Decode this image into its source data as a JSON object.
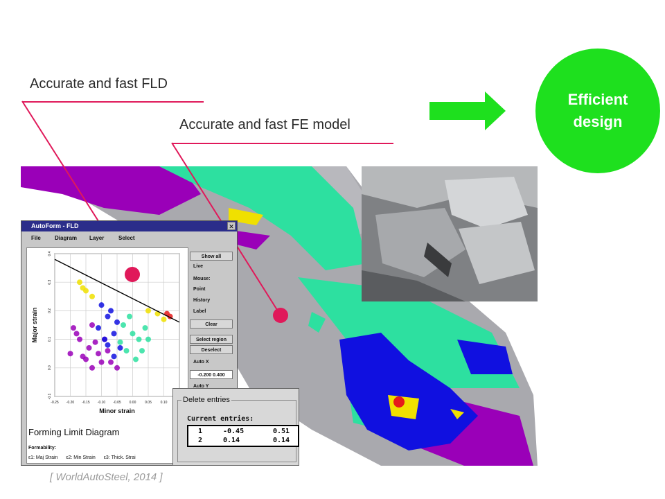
{
  "labels": {
    "fld": "Accurate and fast FLD",
    "fe_model": "Accurate and fast FE model"
  },
  "result": {
    "text_line1": "Efficient",
    "text_line2": "design",
    "circle_color": "#1ee01e",
    "arrow_color": "#1ee01e"
  },
  "citation": "[ WorldAutoSteel, 2014 ]",
  "accent_color": "#e0195a",
  "fld_window": {
    "title": "AutoForm - FLD",
    "menu": [
      "File",
      "Diagram",
      "Layer",
      "Select"
    ],
    "buttons": {
      "show_all": "Show all",
      "live": "Live",
      "mouse_label": "Mouse:",
      "point": "Point",
      "history": "History",
      "label": "Label",
      "clear": "Clear",
      "select_region": "Select region",
      "deselect": "Deselect",
      "auto_x": "Auto X",
      "range": "-0.200 0.400",
      "auto_y": "Auto Y"
    },
    "diagram_title": "Forming Limit Diagram",
    "formability_label": "Formability:",
    "formability_items": {
      "e1": "ε1: Maj Strain",
      "e2": "ε2: Min Strain",
      "e3": "ε3: Thick. Strai"
    }
  },
  "chart_data": {
    "type": "scatter",
    "xlabel": "Minor strain",
    "ylabel": "Major strain",
    "xlim": [
      -0.25,
      0.15
    ],
    "ylim": [
      -0.1,
      0.4
    ],
    "x_ticks": [
      "-0.25",
      "-0.20",
      "-0.15",
      "-0.10",
      "-0.05",
      "0.00",
      "0.05",
      "0.10",
      "0.15"
    ],
    "y_ticks": [
      "-0.1",
      "0.0",
      "0.1",
      "0.2",
      "0.3",
      "0.4"
    ],
    "grid": true,
    "limit_curve": {
      "x": [
        -0.25,
        0.15
      ],
      "y": [
        0.38,
        0.16
      ]
    },
    "series": [
      {
        "color": "#9a00b8",
        "x": [
          -0.2,
          -0.18,
          -0.15,
          -0.13,
          -0.1,
          -0.08,
          -0.12,
          -0.17,
          -0.05,
          -0.14,
          -0.19,
          -0.09,
          -0.16,
          -0.11,
          -0.07,
          -0.13
        ],
        "y": [
          0.05,
          0.12,
          0.03,
          0.15,
          0.02,
          0.06,
          0.09,
          0.1,
          0.0,
          0.07,
          0.14,
          0.1,
          0.04,
          0.05,
          0.02,
          0.0
        ]
      },
      {
        "color": "#1010e0",
        "x": [
          -0.1,
          -0.08,
          -0.06,
          -0.09,
          -0.05,
          -0.07,
          -0.11,
          -0.04,
          -0.06,
          -0.08
        ],
        "y": [
          0.22,
          0.18,
          0.12,
          0.1,
          0.16,
          0.2,
          0.14,
          0.07,
          0.04,
          0.08
        ]
      },
      {
        "color": "#2de0a0",
        "x": [
          -0.03,
          0.0,
          0.02,
          -0.02,
          0.04,
          0.01,
          -0.01,
          0.03,
          0.05,
          -0.04
        ],
        "y": [
          0.15,
          0.12,
          0.1,
          0.06,
          0.14,
          0.03,
          0.18,
          0.06,
          0.1,
          0.09
        ]
      },
      {
        "color": "#f0e000",
        "x": [
          -0.17,
          -0.15,
          -0.13,
          0.05,
          0.08,
          0.1,
          -0.16
        ],
        "y": [
          0.3,
          0.27,
          0.25,
          0.2,
          0.19,
          0.17,
          0.28
        ]
      },
      {
        "color": "#e61a1a",
        "x": [
          0.11,
          0.12
        ],
        "y": [
          0.19,
          0.18
        ]
      }
    ]
  },
  "delete_window": {
    "group_title": "Delete entries",
    "subtitle": "Current entries:",
    "rows": [
      {
        "id": "1",
        "minor": "-0.45",
        "major": "0.51"
      },
      {
        "id": "2",
        "minor": "0.14",
        "major": "0.14"
      }
    ]
  }
}
